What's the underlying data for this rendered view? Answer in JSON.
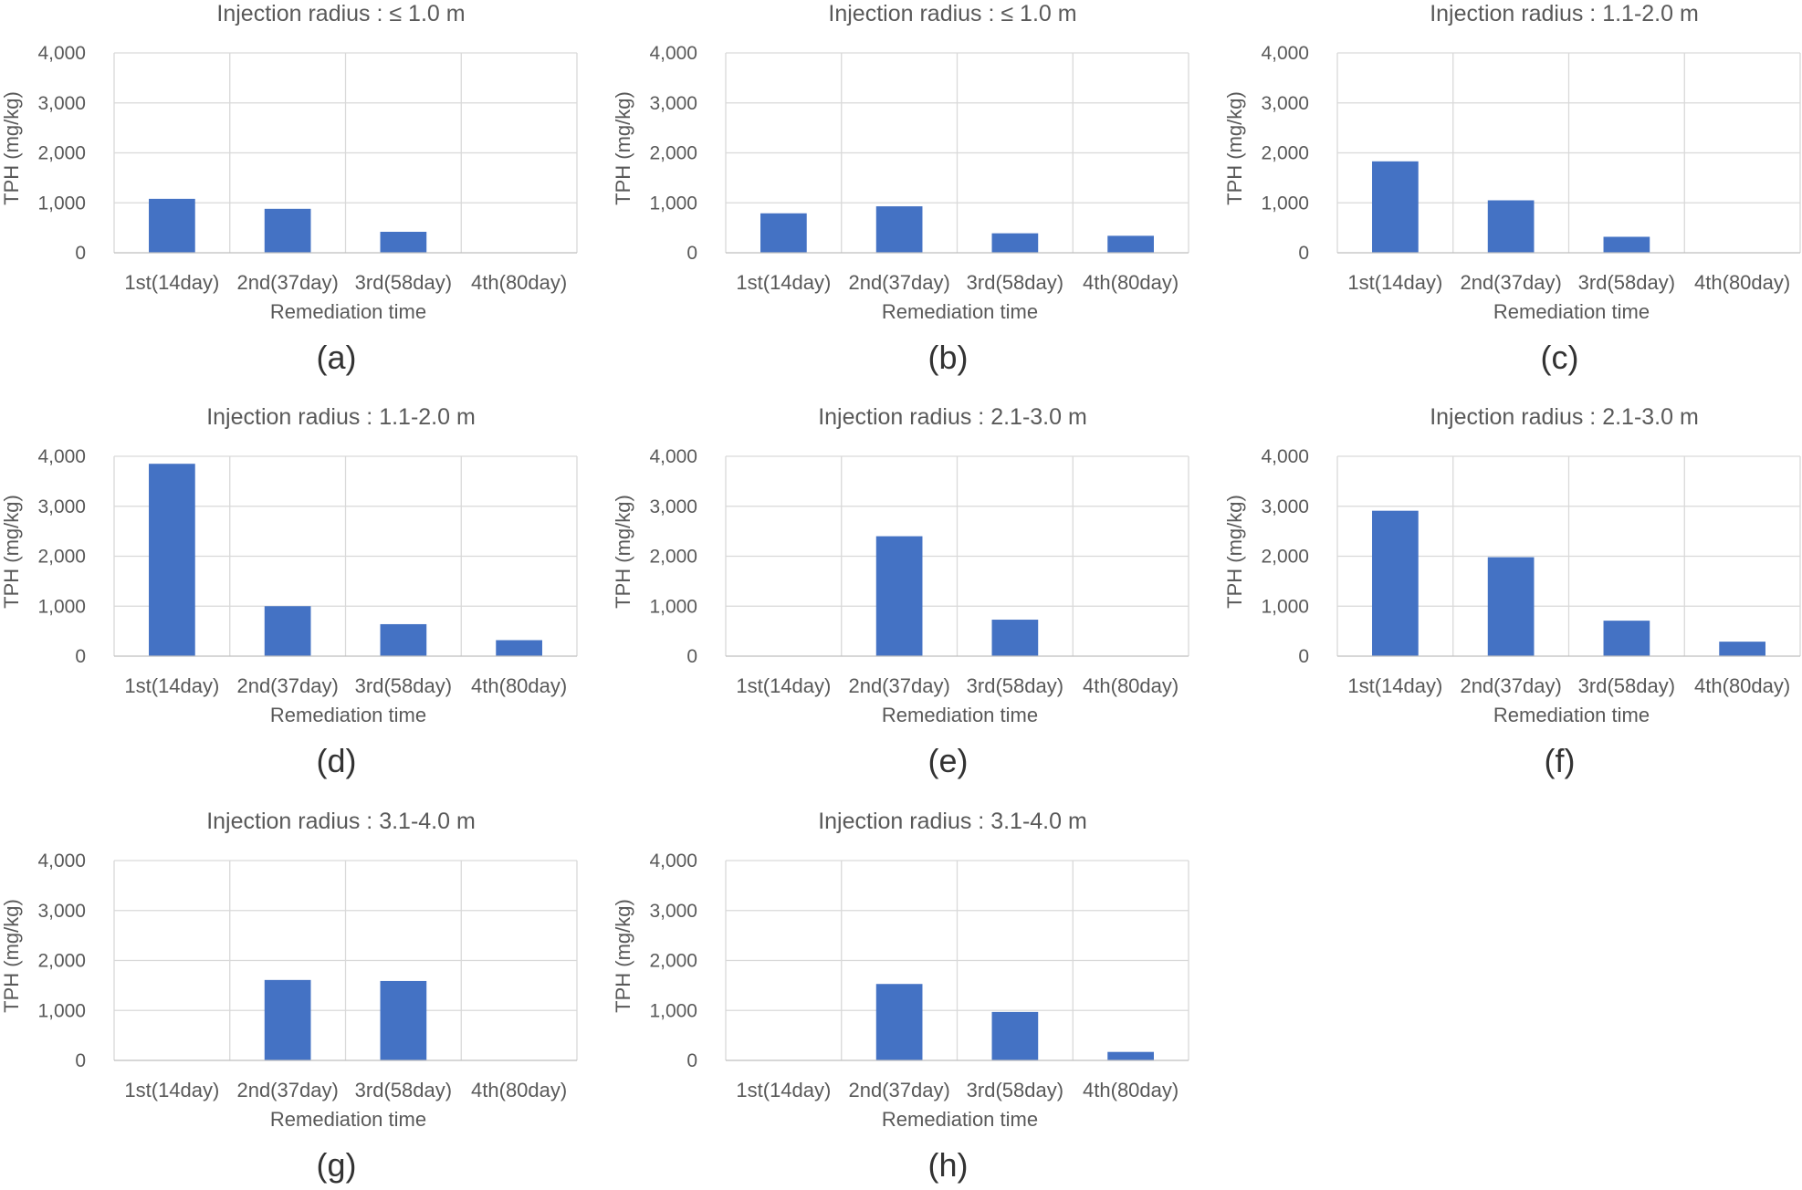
{
  "chart_data": [
    {
      "type": "bar",
      "panel": "(a)",
      "title": "Injection radius : ≤ 1.0 m",
      "xlabel": "Remediation time",
      "ylabel": "TPH (mg/kg)",
      "categories": [
        "1st(14day)",
        "2nd(37day)",
        "3rd(58day)",
        "4th(80day)"
      ],
      "values": [
        1080,
        880,
        420,
        0
      ],
      "ylim": [
        0,
        4000
      ],
      "yticks": [
        "0",
        "1,000",
        "2,000",
        "3,000",
        "4,000"
      ],
      "grid": true,
      "bar_color": "#4472c4"
    },
    {
      "type": "bar",
      "panel": "(b)",
      "title": "Injection radius : ≤ 1.0 m",
      "xlabel": "Remediation time",
      "ylabel": "TPH (mg/kg)",
      "categories": [
        "1st(14day)",
        "2nd(37day)",
        "3rd(58day)",
        "4th(80day)"
      ],
      "values": [
        790,
        930,
        390,
        340
      ],
      "ylim": [
        0,
        4000
      ],
      "yticks": [
        "0",
        "1,000",
        "2,000",
        "3,000",
        "4,000"
      ],
      "grid": true,
      "bar_color": "#4472c4"
    },
    {
      "type": "bar",
      "panel": "(c)",
      "title": "Injection radius : 1.1-2.0 m",
      "xlabel": "Remediation time",
      "ylabel": "TPH (mg/kg)",
      "categories": [
        "1st(14day)",
        "2nd(37day)",
        "3rd(58day)",
        "4th(80day)"
      ],
      "values": [
        1830,
        1050,
        320,
        0
      ],
      "ylim": [
        0,
        4000
      ],
      "yticks": [
        "0",
        "1,000",
        "2,000",
        "3,000",
        "4,000"
      ],
      "grid": true,
      "bar_color": "#4472c4"
    },
    {
      "type": "bar",
      "panel": "(d)",
      "title": "Injection radius : 1.1-2.0 m",
      "xlabel": "Remediation time",
      "ylabel": "TPH (mg/kg)",
      "categories": [
        "1st(14day)",
        "2nd(37day)",
        "3rd(58day)",
        "4th(80day)"
      ],
      "values": [
        3850,
        1000,
        640,
        320
      ],
      "ylim": [
        0,
        4000
      ],
      "yticks": [
        "0",
        "1,000",
        "2,000",
        "3,000",
        "4,000"
      ],
      "grid": true,
      "bar_color": "#4472c4"
    },
    {
      "type": "bar",
      "panel": "(e)",
      "title": "Injection radius : 2.1-3.0 m",
      "xlabel": "Remediation time",
      "ylabel": "TPH (mg/kg)",
      "categories": [
        "1st(14day)",
        "2nd(37day)",
        "3rd(58day)",
        "4th(80day)"
      ],
      "values": [
        0,
        2400,
        730,
        0
      ],
      "ylim": [
        0,
        4000
      ],
      "yticks": [
        "0",
        "1,000",
        "2,000",
        "3,000",
        "4,000"
      ],
      "grid": true,
      "bar_color": "#4472c4"
    },
    {
      "type": "bar",
      "panel": "(f)",
      "title": "Injection radius : 2.1-3.0 m",
      "xlabel": "Remediation time",
      "ylabel": "TPH (mg/kg)",
      "categories": [
        "1st(14day)",
        "2nd(37day)",
        "3rd(58day)",
        "4th(80day)"
      ],
      "values": [
        2910,
        1980,
        710,
        290
      ],
      "ylim": [
        0,
        4000
      ],
      "yticks": [
        "0",
        "1,000",
        "2,000",
        "3,000",
        "4,000"
      ],
      "grid": true,
      "bar_color": "#4472c4"
    },
    {
      "type": "bar",
      "panel": "(g)",
      "title": "Injection radius : 3.1-4.0 m",
      "xlabel": "Remediation time",
      "ylabel": "TPH (mg/kg)",
      "categories": [
        "1st(14day)",
        "2nd(37day)",
        "3rd(58day)",
        "4th(80day)"
      ],
      "values": [
        0,
        1610,
        1590,
        0
      ],
      "ylim": [
        0,
        4000
      ],
      "yticks": [
        "0",
        "1,000",
        "2,000",
        "3,000",
        "4,000"
      ],
      "grid": true,
      "bar_color": "#4472c4"
    },
    {
      "type": "bar",
      "panel": "(h)",
      "title": "Injection radius : 3.1-4.0 m",
      "xlabel": "Remediation time",
      "ylabel": "TPH (mg/kg)",
      "categories": [
        "1st(14day)",
        "2nd(37day)",
        "3rd(58day)",
        "4th(80day)"
      ],
      "values": [
        0,
        1530,
        970,
        170
      ],
      "ylim": [
        0,
        4000
      ],
      "yticks": [
        "0",
        "1,000",
        "2,000",
        "3,000",
        "4,000"
      ],
      "grid": true,
      "bar_color": "#4472c4"
    }
  ]
}
